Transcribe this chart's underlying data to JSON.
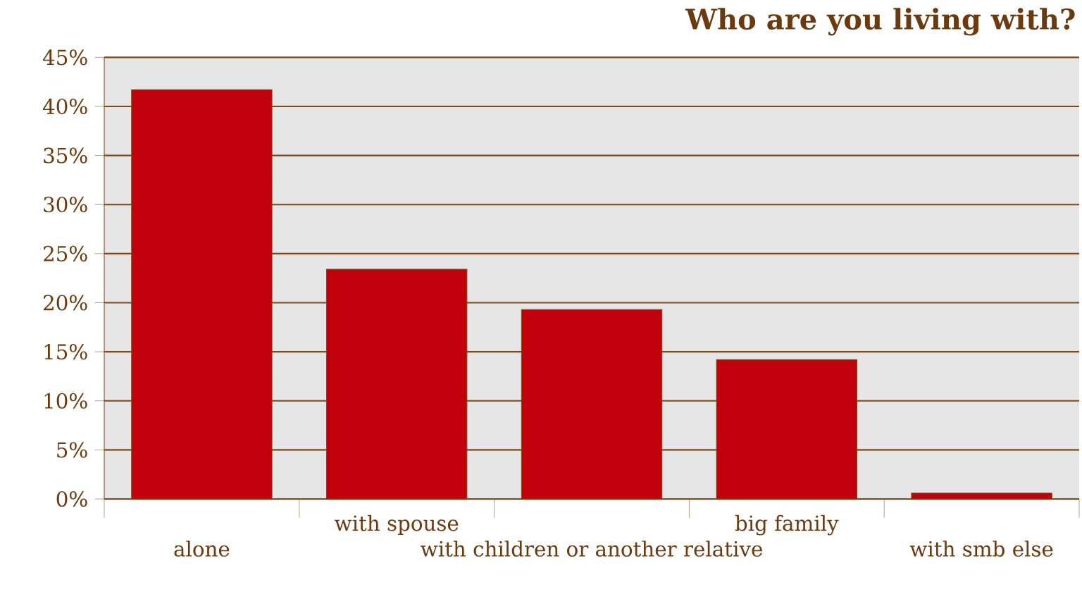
{
  "chart_data": {
    "type": "bar",
    "title": "Who are you living with?",
    "categories": [
      "alone",
      "with spouse",
      "with children or another relative",
      "big family",
      "with smb else"
    ],
    "values": [
      41.7,
      23.4,
      19.3,
      14.2,
      0.6
    ],
    "color": "#c0000b",
    "ylim": [
      0,
      45
    ],
    "yticks": [
      {
        "value": 0,
        "label": "0%"
      },
      {
        "value": 5,
        "label": "5%"
      },
      {
        "value": 10,
        "label": "10%"
      },
      {
        "value": 15,
        "label": "15%"
      },
      {
        "value": 20,
        "label": "20%"
      },
      {
        "value": 25,
        "label": "25%"
      },
      {
        "value": 30,
        "label": "30%"
      },
      {
        "value": 35,
        "label": "35%"
      },
      {
        "value": 40,
        "label": "40%"
      },
      {
        "value": 45,
        "label": "45%"
      }
    ],
    "grid": "y"
  }
}
